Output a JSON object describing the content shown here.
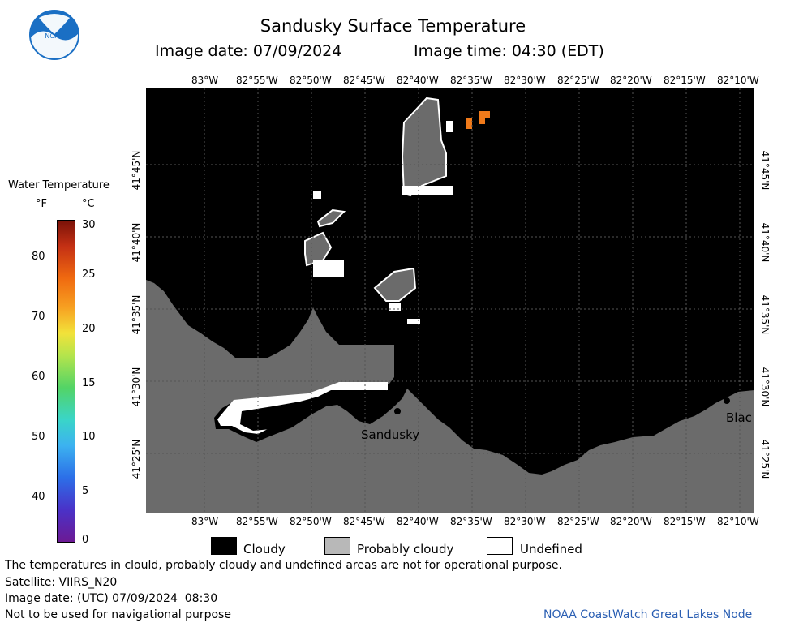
{
  "header": {
    "title": "Sandusky Surface Temperature",
    "image_date": "Image date: 07/09/2024",
    "image_time": "Image time: 04:30 (EDT)"
  },
  "colorbar": {
    "title": "Water Temperature",
    "unit_f": "°F",
    "unit_c": "°C",
    "f_ticks": [
      "80",
      "70",
      "60",
      "50",
      "40"
    ],
    "c_ticks": [
      "30",
      "25",
      "20",
      "15",
      "10",
      "5",
      "0"
    ]
  },
  "map": {
    "lon_labels": [
      "83°W",
      "82°55'W",
      "82°50'W",
      "82°45'W",
      "82°40'W",
      "82°35'W",
      "82°30'W",
      "82°25'W",
      "82°20'W",
      "82°15'W",
      "82°10'W"
    ],
    "lat_labels": [
      "41°45'N",
      "41°40'N",
      "41°35'N",
      "41°30'N",
      "41°25'N"
    ],
    "places": [
      "Sandusky",
      "Blac"
    ],
    "colors": {
      "cloudy": "#000000",
      "probably_cloudy": "#6b6b6b",
      "undefined": "#ffffff",
      "warm_water": "#f07a1a"
    }
  },
  "legend": {
    "cloudy": "Cloudy",
    "probably_cloudy": "Probably cloudy",
    "undefined": "Undefined"
  },
  "footer": {
    "disclaimer": "The temperatures in clould, probably cloudy and undefined areas are not for operational purpose.",
    "satellite": "Satellite: VIIRS_N20",
    "utc_date": "Image date: (UTC) 07/09/2024  08:30",
    "nav_warning": "Not to be used for navigational purpose",
    "credit": "NOAA CoastWatch Great Lakes Node"
  },
  "logo": {
    "text": "NOAA"
  }
}
